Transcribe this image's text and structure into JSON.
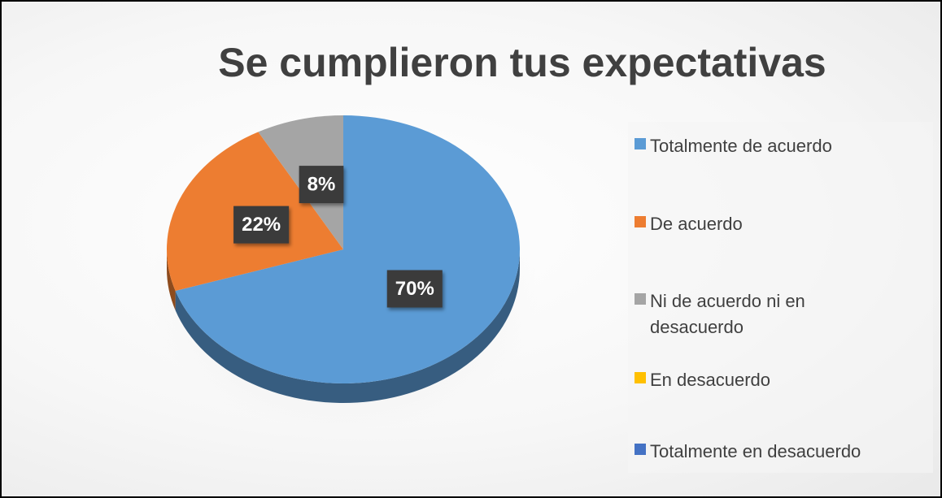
{
  "chart_data": {
    "type": "pie",
    "title": "Se cumplieron tus expectativas",
    "categories": [
      "Totalmente de acuerdo",
      "De acuerdo",
      "Ni de acuerdo ni en desacuerdo",
      "En desacuerdo",
      "Totalmente en desacuerdo"
    ],
    "values": [
      70,
      22,
      8,
      0,
      0
    ],
    "value_labels": [
      "70%",
      "22%",
      "8%",
      null,
      null
    ],
    "colors": [
      "#5b9bd5",
      "#ed7d31",
      "#a5a5a5",
      "#ffc000",
      "#4472c4"
    ],
    "legend": "right"
  }
}
